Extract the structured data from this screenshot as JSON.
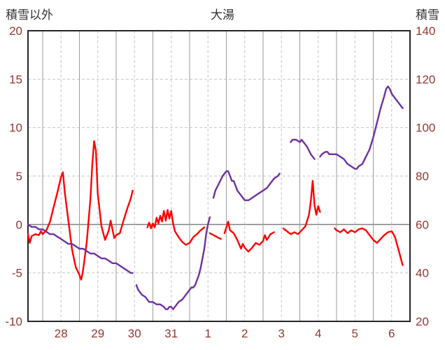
{
  "chart_data": {
    "type": "line",
    "title": "大湯",
    "header": {
      "left": "積雪以外",
      "right": "積雪"
    },
    "left_axis": {
      "title": "積雪以外",
      "min": -10,
      "max": 20,
      "ticks": [
        20,
        15,
        10,
        5,
        0,
        -5,
        -10
      ]
    },
    "right_axis": {
      "title": "積雪",
      "min": 20,
      "max": 140,
      "ticks": [
        140,
        120,
        100,
        80,
        60,
        40,
        20
      ]
    },
    "x_axis": {
      "min": 27.6,
      "max": 38.0,
      "labels": [
        {
          "text": "28",
          "pos": 28.5
        },
        {
          "text": "29",
          "pos": 29.5
        },
        {
          "text": "30",
          "pos": 30.5
        },
        {
          "text": "31",
          "pos": 31.5
        },
        {
          "text": "1",
          "pos": 32.5
        },
        {
          "text": "2",
          "pos": 33.5
        },
        {
          "text": "3",
          "pos": 34.5
        },
        {
          "text": "4",
          "pos": 35.5
        },
        {
          "text": "5",
          "pos": 36.5
        },
        {
          "text": "6",
          "pos": 37.5
        }
      ],
      "solid_gridlines": [
        28,
        29,
        30,
        31,
        32,
        33,
        34,
        35,
        36,
        37
      ],
      "dashed_gridlines": [
        28.5,
        29.5,
        30.5,
        31.5,
        32.5,
        33.5,
        34.5,
        35.5,
        36.5,
        37.5
      ]
    },
    "style": {
      "grid_dashed_color": "#c6c6c6",
      "grid_solid_color": "#9b9b9b",
      "zero_line_color": "#808080",
      "border_color": "#262626",
      "axis_tick_color": "#943634",
      "title_color": "#333333",
      "background": "#ffffff",
      "line_width": 2.4
    },
    "series": [
      {
        "name": "積雪以外",
        "color": "#ff0000",
        "axis": "left",
        "segments": [
          [
            [
              27.6,
              -1.0
            ],
            [
              27.65,
              -1.9
            ],
            [
              27.7,
              -1.2
            ],
            [
              27.8,
              -1.0
            ],
            [
              27.9,
              -1.1
            ],
            [
              27.95,
              -0.7
            ],
            [
              28.0,
              -1.0
            ],
            [
              28.1,
              -0.6
            ],
            [
              28.2,
              0.3
            ],
            [
              28.3,
              1.8
            ],
            [
              28.4,
              3.3
            ],
            [
              28.5,
              4.9
            ],
            [
              28.55,
              5.4
            ],
            [
              28.6,
              3.4
            ],
            [
              28.7,
              0.4
            ],
            [
              28.8,
              -2.6
            ],
            [
              28.9,
              -4.4
            ],
            [
              29.0,
              -5.2
            ],
            [
              29.05,
              -5.7
            ],
            [
              29.1,
              -4.7
            ],
            [
              29.2,
              -1.8
            ],
            [
              29.3,
              2.6
            ],
            [
              29.35,
              6.2
            ],
            [
              29.4,
              8.6
            ],
            [
              29.45,
              7.6
            ],
            [
              29.5,
              3.2
            ],
            [
              29.6,
              -0.2
            ],
            [
              29.7,
              -1.6
            ],
            [
              29.8,
              -0.6
            ],
            [
              29.85,
              0.4
            ],
            [
              29.9,
              -0.5
            ],
            [
              29.95,
              -1.4
            ],
            [
              30.0,
              -1.1
            ],
            [
              30.1,
              -0.9
            ],
            [
              30.2,
              0.4
            ],
            [
              30.3,
              1.6
            ],
            [
              30.4,
              2.7
            ],
            [
              30.45,
              3.5
            ]
          ],
          [
            [
              30.85,
              -0.3
            ],
            [
              30.9,
              0.2
            ],
            [
              30.95,
              -0.4
            ],
            [
              31.0,
              0.1
            ],
            [
              31.05,
              -0.3
            ],
            [
              31.1,
              0.7
            ],
            [
              31.15,
              0.1
            ],
            [
              31.2,
              0.9
            ],
            [
              31.25,
              0.3
            ],
            [
              31.3,
              1.4
            ],
            [
              31.35,
              0.4
            ],
            [
              31.4,
              1.5
            ],
            [
              31.45,
              0.6
            ],
            [
              31.5,
              1.4
            ],
            [
              31.55,
              0.1
            ],
            [
              31.6,
              -0.7
            ],
            [
              31.7,
              -1.3
            ],
            [
              31.8,
              -1.8
            ],
            [
              31.9,
              -2.1
            ],
            [
              32.0,
              -1.9
            ],
            [
              32.1,
              -1.3
            ],
            [
              32.2,
              -1.0
            ],
            [
              32.3,
              -0.6
            ],
            [
              32.4,
              -0.3
            ]
          ],
          [
            [
              32.55,
              -0.9
            ],
            [
              32.65,
              -1.1
            ],
            [
              32.75,
              -1.3
            ],
            [
              32.85,
              -1.5
            ]
          ],
          [
            [
              32.95,
              -0.9
            ],
            [
              33.0,
              -0.3
            ],
            [
              33.05,
              0.3
            ],
            [
              33.1,
              -0.6
            ],
            [
              33.2,
              -0.9
            ],
            [
              33.3,
              -1.6
            ],
            [
              33.4,
              -2.5
            ],
            [
              33.45,
              -2.0
            ],
            [
              33.5,
              -2.4
            ],
            [
              33.6,
              -2.8
            ],
            [
              33.7,
              -2.4
            ],
            [
              33.8,
              -1.9
            ],
            [
              33.9,
              -2.1
            ],
            [
              34.0,
              -1.7
            ],
            [
              34.05,
              -1.1
            ],
            [
              34.1,
              -1.6
            ],
            [
              34.2,
              -1.0
            ],
            [
              34.3,
              -0.8
            ]
          ],
          [
            [
              34.55,
              -0.4
            ],
            [
              34.65,
              -0.7
            ],
            [
              34.75,
              -1.0
            ],
            [
              34.85,
              -0.8
            ],
            [
              34.95,
              -1.0
            ],
            [
              35.05,
              -0.6
            ],
            [
              35.15,
              -0.2
            ],
            [
              35.25,
              1.0
            ],
            [
              35.3,
              2.4
            ],
            [
              35.35,
              4.5
            ],
            [
              35.4,
              2.0
            ],
            [
              35.45,
              1.0
            ],
            [
              35.5,
              1.9
            ],
            [
              35.55,
              1.3
            ]
          ],
          [
            [
              35.95,
              -0.4
            ],
            [
              36.0,
              -0.6
            ],
            [
              36.1,
              -0.8
            ],
            [
              36.2,
              -0.5
            ],
            [
              36.3,
              -0.9
            ],
            [
              36.4,
              -0.6
            ],
            [
              36.5,
              -0.8
            ],
            [
              36.6,
              -0.5
            ],
            [
              36.7,
              -0.4
            ],
            [
              36.8,
              -0.6
            ],
            [
              36.9,
              -1.1
            ],
            [
              37.0,
              -1.6
            ],
            [
              37.1,
              -1.9
            ],
            [
              37.2,
              -1.5
            ],
            [
              37.3,
              -1.1
            ],
            [
              37.4,
              -0.8
            ],
            [
              37.5,
              -0.7
            ],
            [
              37.55,
              -1.0
            ],
            [
              37.6,
              -1.4
            ],
            [
              37.65,
              -2.1
            ],
            [
              37.7,
              -2.8
            ],
            [
              37.75,
              -3.5
            ],
            [
              37.8,
              -4.2
            ]
          ]
        ]
      },
      {
        "name": "積雪",
        "color": "#7030a0",
        "axis": "right",
        "segments": [
          [
            [
              27.6,
              60
            ],
            [
              27.7,
              59
            ],
            [
              27.8,
              59
            ],
            [
              27.9,
              58
            ],
            [
              28.0,
              58
            ],
            [
              28.1,
              57
            ],
            [
              28.2,
              56
            ],
            [
              28.3,
              56
            ],
            [
              28.4,
              55
            ],
            [
              28.5,
              54
            ],
            [
              28.6,
              53
            ],
            [
              28.7,
              52
            ],
            [
              28.8,
              52
            ],
            [
              28.9,
              51
            ],
            [
              29.0,
              50
            ],
            [
              29.1,
              50
            ],
            [
              29.2,
              49
            ],
            [
              29.3,
              48
            ],
            [
              29.4,
              48
            ],
            [
              29.5,
              47
            ],
            [
              29.6,
              46
            ],
            [
              29.7,
              46
            ],
            [
              29.8,
              45
            ],
            [
              29.9,
              44
            ],
            [
              30.0,
              44
            ],
            [
              30.1,
              43
            ],
            [
              30.2,
              42
            ],
            [
              30.3,
              41
            ],
            [
              30.4,
              40
            ],
            [
              30.45,
              40
            ]
          ],
          [
            [
              30.55,
              35
            ],
            [
              30.6,
              33
            ],
            [
              30.7,
              31
            ],
            [
              30.8,
              30
            ],
            [
              30.9,
              28
            ],
            [
              31.0,
              28
            ],
            [
              31.1,
              27
            ],
            [
              31.2,
              27
            ],
            [
              31.3,
              26
            ],
            [
              31.35,
              25
            ],
            [
              31.4,
              25
            ],
            [
              31.45,
              26
            ],
            [
              31.5,
              26
            ],
            [
              31.55,
              25
            ],
            [
              31.6,
              26
            ],
            [
              31.7,
              28
            ],
            [
              31.8,
              29
            ],
            [
              31.9,
              31
            ],
            [
              32.0,
              33
            ],
            [
              32.05,
              34
            ],
            [
              32.1,
              34
            ],
            [
              32.15,
              35
            ],
            [
              32.2,
              37
            ],
            [
              32.25,
              39
            ],
            [
              32.3,
              42
            ],
            [
              32.35,
              46
            ],
            [
              32.4,
              50
            ],
            [
              32.45,
              56
            ],
            [
              32.5,
              60
            ],
            [
              32.55,
              63
            ]
          ],
          [
            [
              32.65,
              71
            ],
            [
              32.7,
              74
            ],
            [
              32.8,
              77
            ],
            [
              32.9,
              80
            ],
            [
              33.0,
              82
            ],
            [
              33.05,
              82
            ],
            [
              33.1,
              80
            ],
            [
              33.15,
              78
            ],
            [
              33.2,
              78
            ],
            [
              33.3,
              74
            ],
            [
              33.4,
              72
            ],
            [
              33.5,
              70
            ],
            [
              33.55,
              70
            ],
            [
              33.6,
              70
            ],
            [
              33.7,
              71
            ],
            [
              33.8,
              72
            ],
            [
              33.9,
              73
            ],
            [
              34.0,
              74
            ],
            [
              34.1,
              75
            ],
            [
              34.2,
              77
            ],
            [
              34.3,
              79
            ],
            [
              34.4,
              80
            ],
            [
              34.45,
              81
            ]
          ],
          [
            [
              34.75,
              94
            ],
            [
              34.8,
              95
            ],
            [
              34.9,
              95
            ],
            [
              35.0,
              94
            ],
            [
              35.05,
              95
            ],
            [
              35.1,
              94
            ],
            [
              35.15,
              93
            ],
            [
              35.2,
              92
            ],
            [
              35.3,
              89
            ],
            [
              35.4,
              87
            ]
          ],
          [
            [
              35.55,
              88
            ],
            [
              35.6,
              89
            ],
            [
              35.7,
              90
            ],
            [
              35.75,
              90
            ],
            [
              35.8,
              89
            ],
            [
              35.9,
              89
            ],
            [
              36.0,
              89
            ],
            [
              36.1,
              88
            ],
            [
              36.2,
              87
            ],
            [
              36.3,
              85
            ],
            [
              36.4,
              84
            ],
            [
              36.5,
              83
            ],
            [
              36.55,
              83
            ],
            [
              36.6,
              84
            ],
            [
              36.7,
              85
            ],
            [
              36.8,
              88
            ],
            [
              36.9,
              91
            ],
            [
              37.0,
              96
            ],
            [
              37.1,
              102
            ],
            [
              37.2,
              108
            ],
            [
              37.3,
              113
            ],
            [
              37.35,
              116
            ],
            [
              37.4,
              117
            ],
            [
              37.45,
              116
            ],
            [
              37.5,
              114
            ],
            [
              37.6,
              112
            ],
            [
              37.7,
              110
            ],
            [
              37.75,
              109
            ],
            [
              37.8,
              108
            ]
          ]
        ]
      }
    ]
  }
}
